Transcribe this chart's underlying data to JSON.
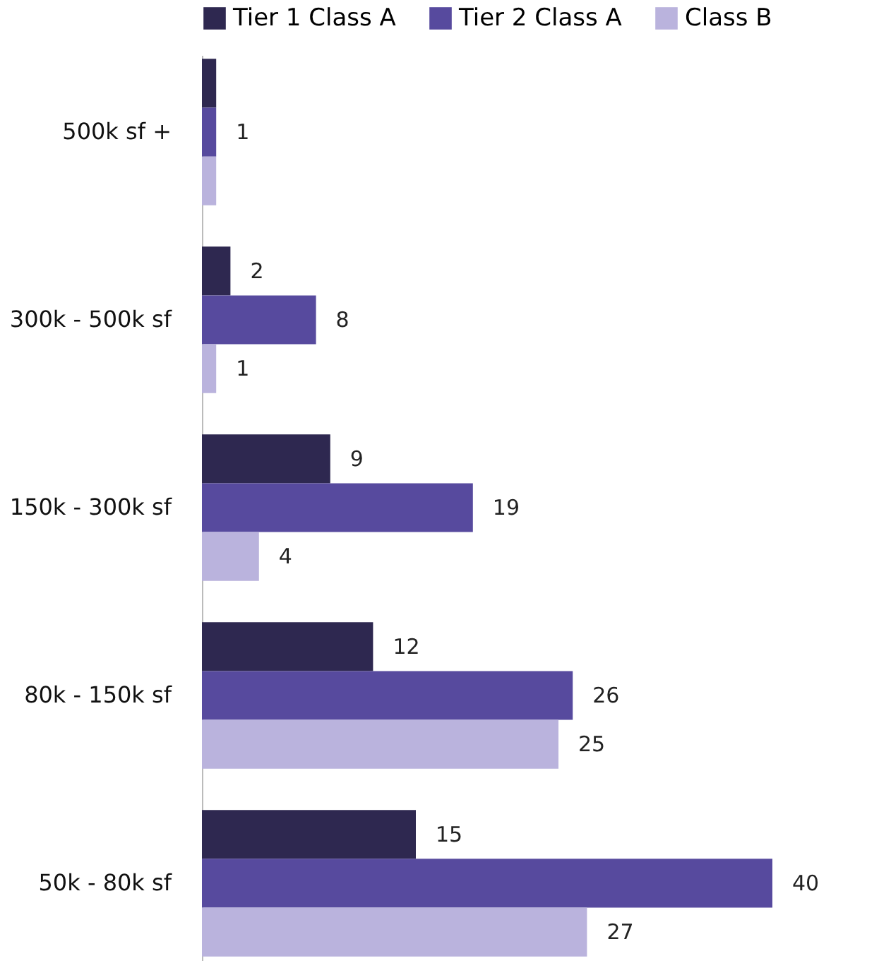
{
  "chart_data": {
    "type": "bar",
    "orientation": "horizontal",
    "legend": "top",
    "categories": [
      "500k sf +",
      "300k - 500k sf",
      "150k - 300k sf",
      "80k - 150k sf",
      "50k - 80k sf"
    ],
    "series": [
      {
        "name": "Tier 1 Class A",
        "color": "#2e2850",
        "values": [
          1,
          2,
          9,
          12,
          15
        ],
        "value_labels": [
          null,
          "2",
          "9",
          "12",
          "15"
        ]
      },
      {
        "name": "Tier 2 Class A",
        "color": "#574a9e",
        "values": [
          1,
          8,
          19,
          26,
          40
        ],
        "value_labels": [
          "1",
          "8",
          "19",
          "26",
          "40"
        ]
      },
      {
        "name": "Class B",
        "color": "#bab3dd",
        "values": [
          1,
          1,
          4,
          25,
          27
        ],
        "value_labels": [
          null,
          "1",
          "4",
          "25",
          "27"
        ]
      }
    ]
  }
}
